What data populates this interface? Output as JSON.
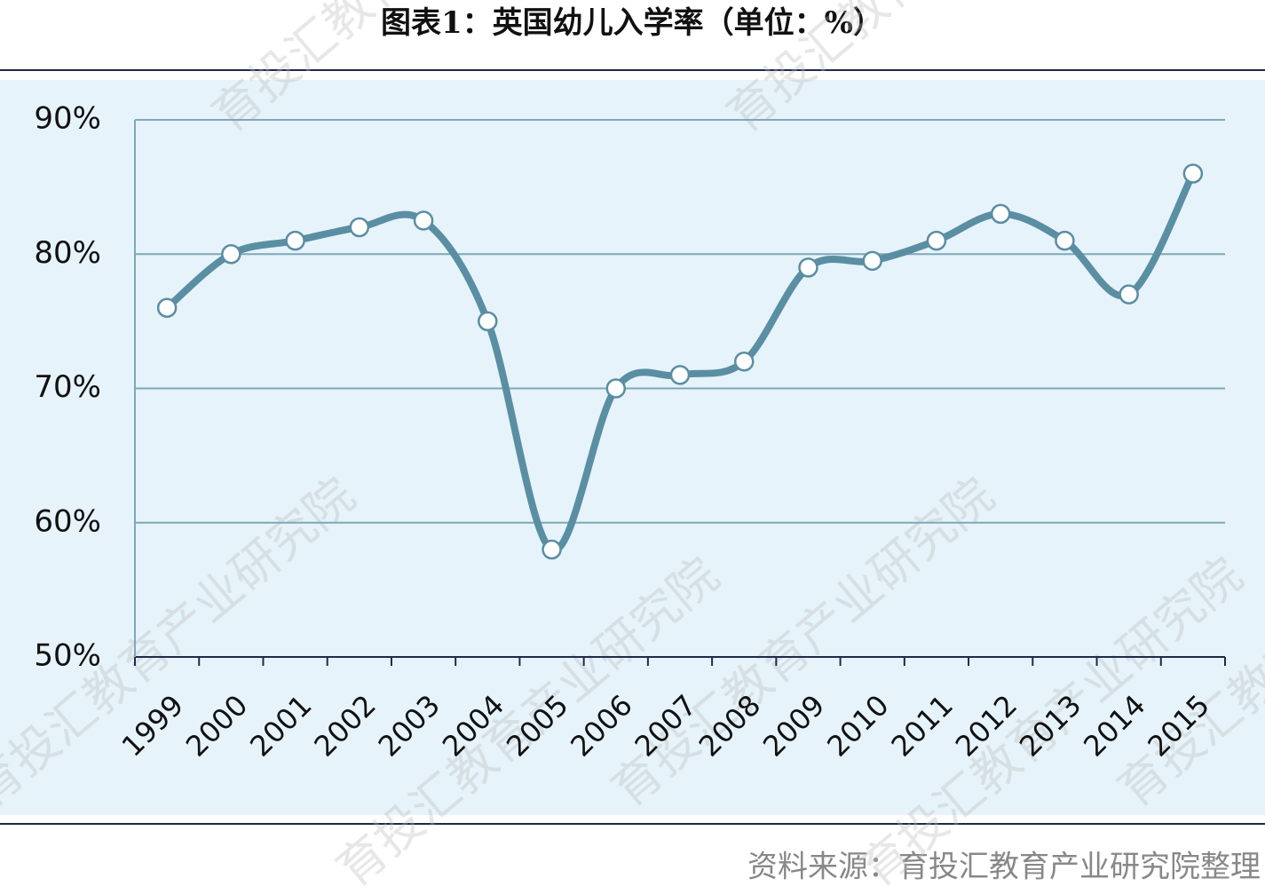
{
  "chart_data": {
    "type": "line",
    "title": "图表1：英国幼儿入学率（单位：%）",
    "categories": [
      "1999",
      "2000",
      "2001",
      "2002",
      "2003",
      "2004",
      "2005",
      "2006",
      "2007",
      "2008",
      "2009",
      "2010",
      "2011",
      "2012",
      "2013",
      "2014",
      "2015"
    ],
    "series": [
      {
        "color": "#5a8ea3",
        "values": [
          76,
          80,
          81,
          82,
          82.5,
          75,
          58,
          70,
          71,
          72,
          79,
          79.5,
          81,
          83,
          81,
          77,
          86
        ]
      }
    ],
    "ylim": [
      50,
      90
    ],
    "yticks": [
      {
        "value": 50,
        "label": "50%"
      },
      {
        "value": 60,
        "label": "60%"
      },
      {
        "value": 70,
        "label": "70%"
      },
      {
        "value": 80,
        "label": "80%"
      },
      {
        "value": 90,
        "label": "90%"
      }
    ],
    "grid": true,
    "source": "资料来源：育投汇教育产业研究院整理",
    "watermark": "育投汇教育产业研究院"
  }
}
